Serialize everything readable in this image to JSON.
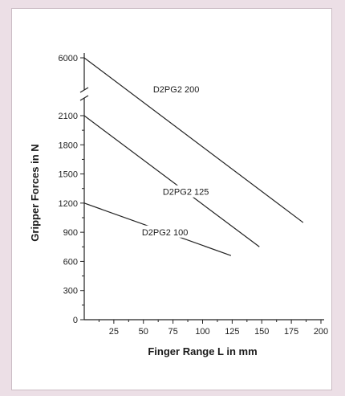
{
  "chart_data": {
    "type": "line",
    "title": "",
    "xlabel": "Finger Range L in mm",
    "ylabel": "Gripper Forces in N",
    "xlim": [
      0,
      200
    ],
    "x_ticks": [
      "25",
      "50",
      "75",
      "100",
      "125",
      "150",
      "175",
      "200"
    ],
    "y_ticks": [
      "0",
      "300",
      "600",
      "900",
      "1200",
      "1500",
      "1800",
      "2100",
      "6000"
    ],
    "y_axis_break": "between 2100 and 6000",
    "grid": false,
    "legend": "none (series labelled directly on lines)",
    "series": [
      {
        "name": "D2PG2 200",
        "x": [
          0,
          185
        ],
        "y": [
          6000,
          1000
        ]
      },
      {
        "name": "D2PG2 125",
        "x": [
          0,
          148
        ],
        "y": [
          2100,
          750
        ]
      },
      {
        "name": "D2PG2 100",
        "x": [
          0,
          124
        ],
        "y": [
          1200,
          660
        ]
      }
    ],
    "colors": {
      "line": "#222222",
      "axis": "#222222",
      "background": "#ffffff",
      "outer": "#ecdfe6"
    }
  }
}
